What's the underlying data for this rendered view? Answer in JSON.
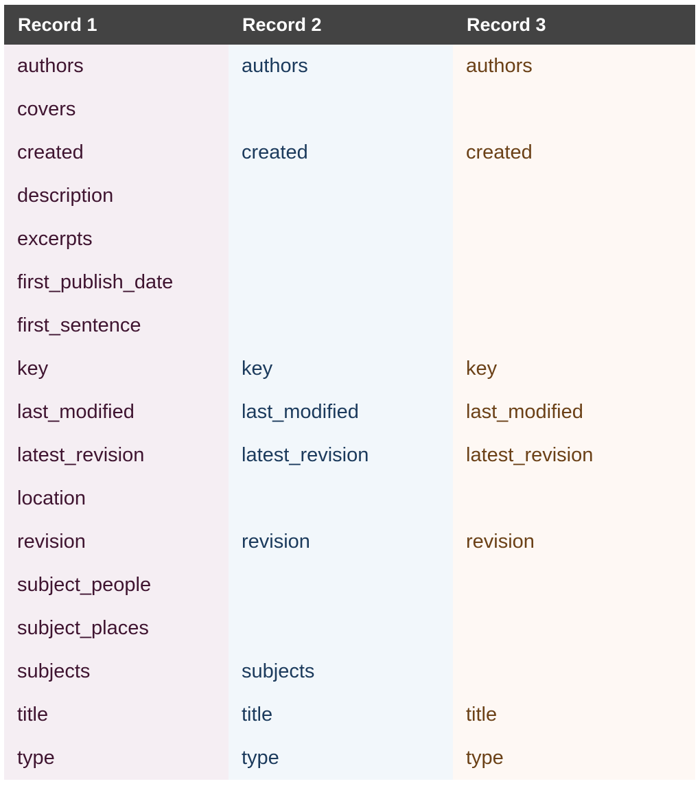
{
  "headers": [
    "Record 1",
    "Record 2",
    "Record 3"
  ],
  "rows": [
    [
      "authors",
      "authors",
      "authors"
    ],
    [
      "covers",
      "",
      ""
    ],
    [
      "created",
      "created",
      "created"
    ],
    [
      "description",
      "",
      ""
    ],
    [
      "excerpts",
      "",
      ""
    ],
    [
      "first_publish_date",
      "",
      ""
    ],
    [
      "first_sentence",
      "",
      ""
    ],
    [
      "key",
      "key",
      "key"
    ],
    [
      "last_modified",
      "last_modified",
      "last_modified"
    ],
    [
      "latest_revision",
      "latest_revision",
      "latest_revision"
    ],
    [
      "location",
      "",
      ""
    ],
    [
      "revision",
      "revision",
      "revision"
    ],
    [
      "subject_people",
      "",
      ""
    ],
    [
      "subject_places",
      "",
      ""
    ],
    [
      "subjects",
      "subjects",
      ""
    ],
    [
      "title",
      "title",
      "title"
    ],
    [
      "type",
      "type",
      "type"
    ]
  ],
  "colors": {
    "header_bg": "#434343",
    "col1_bg": "#f5eef3",
    "col2_bg": "#f2f7fb",
    "col3_bg": "#fef8f4",
    "col1_text": "#3f1430",
    "col2_text": "#1b3a5c",
    "col3_text": "#6b4117"
  }
}
